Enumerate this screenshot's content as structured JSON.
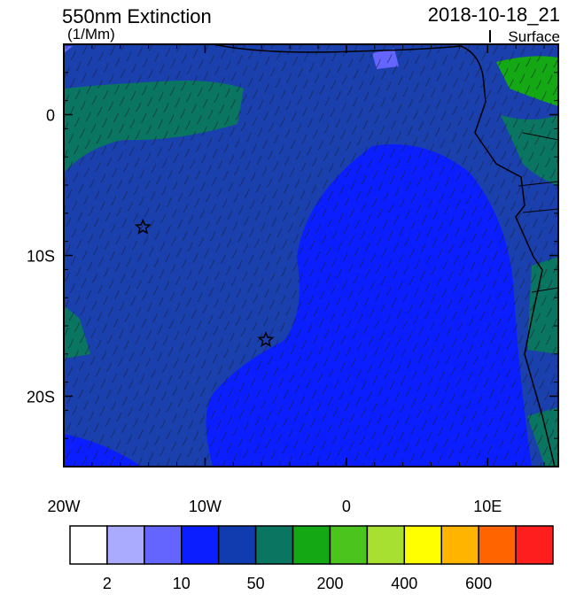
{
  "title": "550nm Extinction",
  "units": "(1/Mm)",
  "time": "2018-10-18_21",
  "level": "Surface",
  "map": {
    "xlim": [
      -20,
      15
    ],
    "ylim": [
      -25,
      5
    ],
    "xticks": [
      {
        "value": -20,
        "label": "20W"
      },
      {
        "value": -10,
        "label": "10W"
      },
      0,
      {
        "value": 10,
        "label": "10E"
      }
    ],
    "yticks": [
      0,
      {
        "value": -10,
        "label": "10S"
      },
      {
        "value": -20,
        "label": "20S"
      }
    ],
    "markers": [
      {
        "lon": -14.4,
        "lat": -8
      },
      {
        "lon": -5.7,
        "lat": -16
      }
    ]
  },
  "colorbar": {
    "colors": [
      "#ffffff",
      "#aaaaff",
      "#6464ff",
      "#0a1eff",
      "#103cb0",
      "#0a7560",
      "#14a814",
      "#4cc41e",
      "#a8e032",
      "#ffff00",
      "#ffb400",
      "#ff6400",
      "#ff1e1e"
    ],
    "labels": [
      2,
      10,
      50,
      200,
      400,
      600
    ]
  }
}
